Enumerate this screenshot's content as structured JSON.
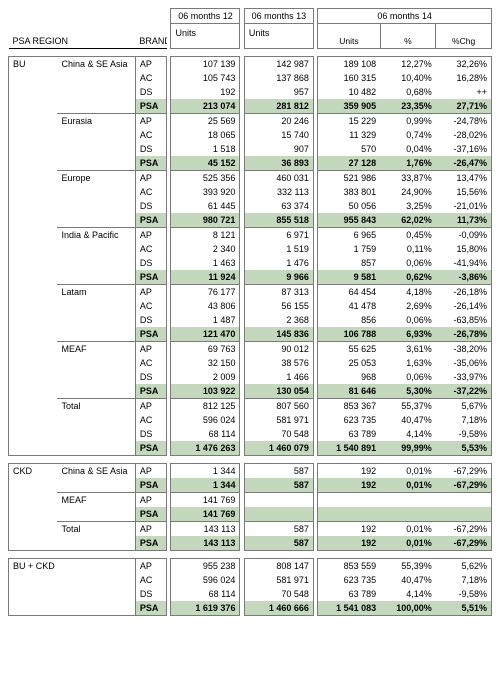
{
  "colors": {
    "band": "#c3d8bd",
    "border": "#7a7a7a",
    "background": "#ffffff",
    "text": "#000000"
  },
  "header": {
    "psa_region": "PSA REGION",
    "brands": "BRANDS",
    "p12": "06 months 12",
    "p13": "06 months 13",
    "p14": "06 months 14",
    "units": "Units",
    "pct": "%",
    "chg": "%Chg"
  },
  "groups": [
    {
      "name": "BU",
      "regions": [
        {
          "name": "China & SE Asia",
          "rows": [
            {
              "b": "AP",
              "u12": "107 139",
              "u13": "142 987",
              "u14": "189 108",
              "p": "12,27%",
              "c": "32,26%"
            },
            {
              "b": "AC",
              "u12": "105 743",
              "u13": "137 868",
              "u14": "160 315",
              "p": "10,40%",
              "c": "16,28%"
            },
            {
              "b": "DS",
              "u12": "192",
              "u13": "957",
              "u14": "10 482",
              "p": "0,68%",
              "c": "++"
            },
            {
              "b": "PSA",
              "u12": "213 074",
              "u13": "281 812",
              "u14": "359 905",
              "p": "23,35%",
              "c": "27,71%",
              "psa": true
            }
          ]
        },
        {
          "name": "Eurasia",
          "rows": [
            {
              "b": "AP",
              "u12": "25 569",
              "u13": "20 246",
              "u14": "15 229",
              "p": "0,99%",
              "c": "-24,78%"
            },
            {
              "b": "AC",
              "u12": "18 065",
              "u13": "15 740",
              "u14": "11 329",
              "p": "0,74%",
              "c": "-28,02%"
            },
            {
              "b": "DS",
              "u12": "1 518",
              "u13": "907",
              "u14": "570",
              "p": "0,04%",
              "c": "-37,16%"
            },
            {
              "b": "PSA",
              "u12": "45 152",
              "u13": "36 893",
              "u14": "27 128",
              "p": "1,76%",
              "c": "-26,47%",
              "psa": true
            }
          ]
        },
        {
          "name": "Europe",
          "rows": [
            {
              "b": "AP",
              "u12": "525 356",
              "u13": "460 031",
              "u14": "521 986",
              "p": "33,87%",
              "c": "13,47%"
            },
            {
              "b": "AC",
              "u12": "393 920",
              "u13": "332 113",
              "u14": "383 801",
              "p": "24,90%",
              "c": "15,56%"
            },
            {
              "b": "DS",
              "u12": "61 445",
              "u13": "63 374",
              "u14": "50 056",
              "p": "3,25%",
              "c": "-21,01%"
            },
            {
              "b": "PSA",
              "u12": "980 721",
              "u13": "855 518",
              "u14": "955 843",
              "p": "62,02%",
              "c": "11,73%",
              "psa": true
            }
          ]
        },
        {
          "name": "India & Pacific",
          "rows": [
            {
              "b": "AP",
              "u12": "8 121",
              "u13": "6 971",
              "u14": "6 965",
              "p": "0,45%",
              "c": "-0,09%"
            },
            {
              "b": "AC",
              "u12": "2 340",
              "u13": "1 519",
              "u14": "1 759",
              "p": "0,11%",
              "c": "15,80%"
            },
            {
              "b": "DS",
              "u12": "1 463",
              "u13": "1 476",
              "u14": "857",
              "p": "0,06%",
              "c": "-41,94%"
            },
            {
              "b": "PSA",
              "u12": "11 924",
              "u13": "9 966",
              "u14": "9 581",
              "p": "0,62%",
              "c": "-3,86%",
              "psa": true
            }
          ]
        },
        {
          "name": "Latam",
          "rows": [
            {
              "b": "AP",
              "u12": "76 177",
              "u13": "87 313",
              "u14": "64 454",
              "p": "4,18%",
              "c": "-26,18%"
            },
            {
              "b": "AC",
              "u12": "43 806",
              "u13": "56 155",
              "u14": "41 478",
              "p": "2,69%",
              "c": "-26,14%"
            },
            {
              "b": "DS",
              "u12": "1 487",
              "u13": "2 368",
              "u14": "856",
              "p": "0,06%",
              "c": "-63,85%"
            },
            {
              "b": "PSA",
              "u12": "121 470",
              "u13": "145 836",
              "u14": "106 788",
              "p": "6,93%",
              "c": "-26,78%",
              "psa": true
            }
          ]
        },
        {
          "name": "MEAF",
          "rows": [
            {
              "b": "AP",
              "u12": "69 763",
              "u13": "90 012",
              "u14": "55 625",
              "p": "3,61%",
              "c": "-38,20%"
            },
            {
              "b": "AC",
              "u12": "32 150",
              "u13": "38 576",
              "u14": "25 053",
              "p": "1,63%",
              "c": "-35,06%"
            },
            {
              "b": "DS",
              "u12": "2 009",
              "u13": "1 466",
              "u14": "968",
              "p": "0,06%",
              "c": "-33,97%"
            },
            {
              "b": "PSA",
              "u12": "103 922",
              "u13": "130 054",
              "u14": "81 646",
              "p": "5,30%",
              "c": "-37,22%",
              "psa": true
            }
          ]
        },
        {
          "name": "Total",
          "rows": [
            {
              "b": "AP",
              "u12": "812 125",
              "u13": "807 560",
              "u14": "853 367",
              "p": "55,37%",
              "c": "5,67%"
            },
            {
              "b": "AC",
              "u12": "596 024",
              "u13": "581 971",
              "u14": "623 735",
              "p": "40,47%",
              "c": "7,18%"
            },
            {
              "b": "DS",
              "u12": "68 114",
              "u13": "70 548",
              "u14": "63 789",
              "p": "4,14%",
              "c": "-9,58%"
            },
            {
              "b": "PSA",
              "u12": "1 476 263",
              "u13": "1 460 079",
              "u14": "1 540 891",
              "p": "99,99%",
              "c": "5,53%",
              "psa": true
            }
          ]
        }
      ]
    },
    {
      "name": "CKD",
      "regions": [
        {
          "name": "China & SE Asia",
          "rows": [
            {
              "b": "AP",
              "u12": "1 344",
              "u13": "587",
              "u14": "192",
              "p": "0,01%",
              "c": "-67,29%"
            },
            {
              "b": "PSA",
              "u12": "1 344",
              "u13": "587",
              "u14": "192",
              "p": "0,01%",
              "c": "-67,29%",
              "psa": true
            }
          ]
        },
        {
          "name": "MEAF",
          "rows": [
            {
              "b": "AP",
              "u12": "141 769",
              "u13": "",
              "u14": "",
              "p": "",
              "c": ""
            },
            {
              "b": "PSA",
              "u12": "141 769",
              "u13": "",
              "u14": "",
              "p": "",
              "c": "",
              "psa": true
            }
          ]
        },
        {
          "name": "Total",
          "rows": [
            {
              "b": "AP",
              "u12": "143 113",
              "u13": "587",
              "u14": "192",
              "p": "0,01%",
              "c": "-67,29%"
            },
            {
              "b": "PSA",
              "u12": "143 113",
              "u13": "587",
              "u14": "192",
              "p": "0,01%",
              "c": "-67,29%",
              "psa": true
            }
          ]
        }
      ]
    },
    {
      "name": "BU + CKD",
      "regions": [
        {
          "name": "",
          "rows": [
            {
              "b": "AP",
              "u12": "955 238",
              "u13": "808 147",
              "u14": "853 559",
              "p": "55,39%",
              "c": "5,62%"
            },
            {
              "b": "AC",
              "u12": "596 024",
              "u13": "581 971",
              "u14": "623 735",
              "p": "40,47%",
              "c": "7,18%"
            },
            {
              "b": "DS",
              "u12": "68 114",
              "u13": "70 548",
              "u14": "63 789",
              "p": "4,14%",
              "c": "-9,58%"
            },
            {
              "b": "PSA",
              "u12": "1 619 376",
              "u13": "1 460 666",
              "u14": "1 541 083",
              "p": "100,00%",
              "c": "5,51%",
              "psa": true
            }
          ]
        }
      ]
    }
  ]
}
